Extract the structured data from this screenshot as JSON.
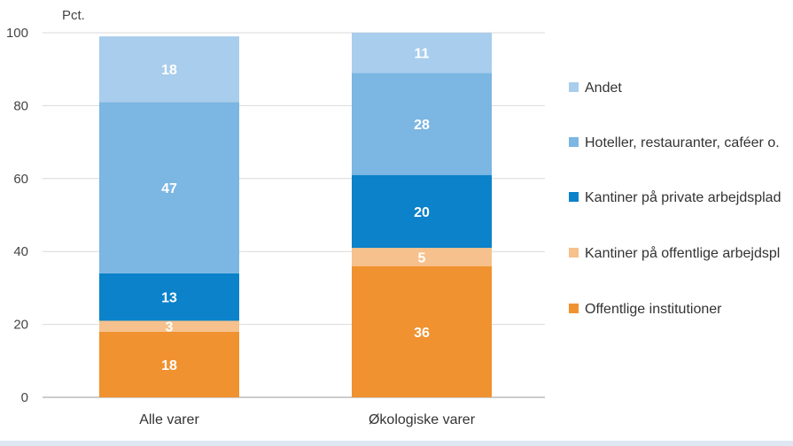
{
  "chart_data": {
    "type": "bar",
    "stacked": true,
    "ylabel": "Pct.",
    "ylim": [
      0,
      100
    ],
    "yticks": [
      0,
      20,
      40,
      60,
      80,
      100
    ],
    "grid": true,
    "legend_position": "right",
    "categories": [
      "Alle varer",
      "Økologiske varer"
    ],
    "series": [
      {
        "name": "Offentlige institutioner",
        "color": "#f0922f",
        "values": [
          18,
          36
        ]
      },
      {
        "name": "Kantiner på offentlige arbejdspl",
        "color": "#f6c18d",
        "values": [
          3,
          5
        ]
      },
      {
        "name": "Kantiner på private arbejdsplad",
        "color": "#0b82c9",
        "values": [
          13,
          20
        ]
      },
      {
        "name": "Hoteller, restauranter, caféer o.",
        "color": "#7cb6e2",
        "values": [
          47,
          28
        ]
      },
      {
        "name": "Andet",
        "color": "#a9cdec",
        "values": [
          18,
          11
        ]
      }
    ]
  }
}
